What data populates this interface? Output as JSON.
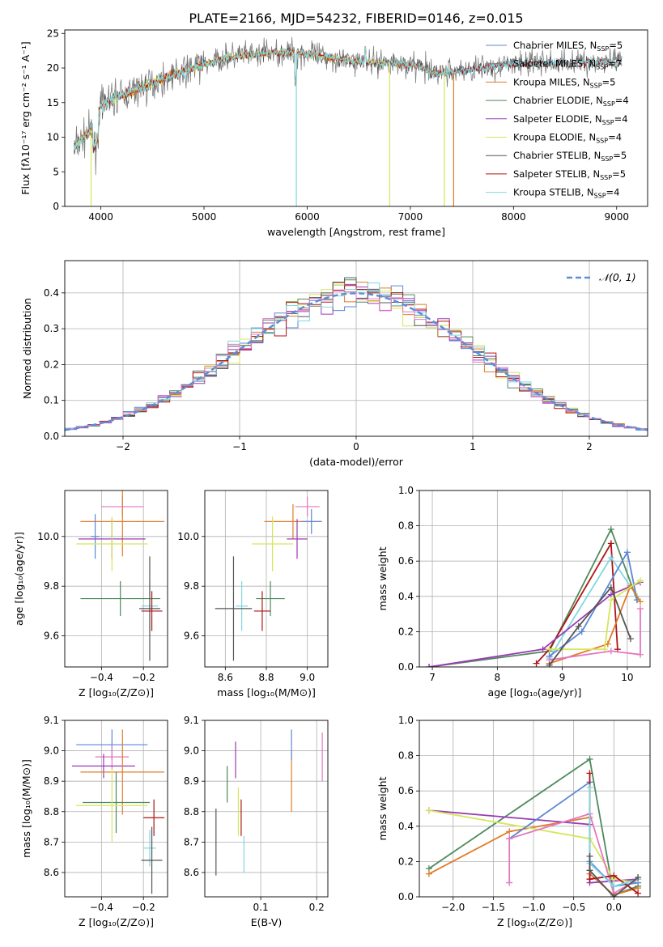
{
  "title": "PLATE=2166, MJD=54232, FIBERID=0146, z=0.015",
  "colors": {
    "Chabrier MILES": "#5b87d6",
    "Salpeter MILES": "#7f7f7f",
    "Kroupa MILES": "#e07b28",
    "Chabrier ELODIE": "#4e8a5e",
    "Salpeter ELODIE": "#9a3bb5",
    "Kroupa ELODIE": "#d6e65c",
    "Chabrier STELIB": "#555555",
    "Salpeter STELIB": "#b01515",
    "Kroupa STELIB": "#7fd8e0",
    "extra_pink": "#e377c2",
    "normal_curve": "#5b8ed6"
  },
  "chart_data": [
    {
      "id": "spectrum",
      "type": "line",
      "xlabel": "wavelength [Angstrom, rest frame]",
      "ylabel": "Flux [fλ10⁻¹⁷ erg cm⁻² s⁻¹ A⁻¹]",
      "xlim": [
        3650,
        9300
      ],
      "ylim": [
        0,
        25.5
      ],
      "xticks": [
        4000,
        5000,
        6000,
        7000,
        8000,
        9000
      ],
      "yticks": [
        0,
        5,
        10,
        15,
        20,
        25
      ],
      "legend_position": "right",
      "legend": [
        {
          "label": "Chabrier MILES, N",
          "sub": "SSP",
          "tail": "=5"
        },
        {
          "label": "Salpeter MILES, N",
          "sub": "SSP",
          "tail": "=7"
        },
        {
          "label": "Kroupa MILES, N",
          "sub": "SSP",
          "tail": "=5"
        },
        {
          "label": "Chabrier ELODIE, N",
          "sub": "SSP",
          "tail": "=4"
        },
        {
          "label": "Salpeter ELODIE, N",
          "sub": "SSP",
          "tail": "=4"
        },
        {
          "label": "Kroupa ELODIE, N",
          "sub": "SSP",
          "tail": "=4"
        },
        {
          "label": "Chabrier STELIB, N",
          "sub": "SSP",
          "tail": "=5"
        },
        {
          "label": "Salpeter STELIB, N",
          "sub": "SSP",
          "tail": "=5"
        },
        {
          "label": "Kroupa STELIB, N",
          "sub": "SSP",
          "tail": "=4"
        }
      ],
      "continuum": [
        [
          3730,
          8
        ],
        [
          3800,
          9.5
        ],
        [
          3900,
          11
        ],
        [
          3950,
          12
        ],
        [
          4000,
          14.5
        ],
        [
          4100,
          15.5
        ],
        [
          4300,
          16.5
        ],
        [
          4500,
          17.8
        ],
        [
          4700,
          19
        ],
        [
          5000,
          20.5
        ],
        [
          5200,
          21.5
        ],
        [
          5500,
          22
        ],
        [
          5800,
          22.3
        ],
        [
          6000,
          22
        ],
        [
          6200,
          21.5
        ],
        [
          6500,
          21
        ],
        [
          6700,
          20.8
        ],
        [
          6900,
          20.7
        ],
        [
          7100,
          20.2
        ],
        [
          7200,
          19.2
        ],
        [
          7500,
          19.6
        ],
        [
          8000,
          20.6
        ],
        [
          8500,
          20.8
        ],
        [
          9000,
          20.9
        ]
      ],
      "drop_lines": [
        {
          "x": 5895,
          "series": "Kroupa STELIB"
        },
        {
          "x": 6800,
          "series": "Kroupa ELODIE"
        },
        {
          "x": 7330,
          "series": "Kroupa ELODIE"
        },
        {
          "x": 7420,
          "series": "Kroupa MILES"
        },
        {
          "x": 3905,
          "series": "Kroupa ELODIE"
        }
      ]
    },
    {
      "id": "residuals",
      "type": "line",
      "xlabel": "(data-model)/error",
      "ylabel": "Normed distribution",
      "xlim": [
        -2.5,
        2.5
      ],
      "ylim": [
        0,
        0.49
      ],
      "xticks": [
        -2,
        -1,
        0,
        1,
        2
      ],
      "xtick_labels": [
        "−2",
        "−1",
        "0",
        "1",
        "2"
      ],
      "yticks": [
        0.0,
        0.1,
        0.2,
        0.3,
        0.4
      ],
      "ytick_labels": [
        "0.0",
        "0.1",
        "0.2",
        "0.3",
        "0.4"
      ],
      "grid": true,
      "legend_position": "top-right",
      "legend_label": "𝒩(0, 1)",
      "bin_width": 0.1
    },
    {
      "id": "Z_vs_age",
      "type": "scatter",
      "xlabel": "Z [log₁₀(Z/Z⊙)]",
      "ylabel": "age  [log₁₀(age/yr)]",
      "xlim": [
        -0.575,
        -0.085
      ],
      "ylim": [
        9.475,
        10.185
      ],
      "xticks": [
        -0.4,
        -0.2
      ],
      "xtick_labels": [
        "−0.4",
        "−0.2"
      ],
      "yticks": [
        9.6,
        9.8,
        10.0
      ],
      "ytick_labels": [
        "9.6",
        "9.8",
        "10.0"
      ],
      "grid": true,
      "points": [
        {
          "x": -0.3,
          "y": 10.12,
          "xerr": 0.1,
          "yerr": 0.04,
          "c": "extra_pink"
        },
        {
          "x": -0.3,
          "y": 10.06,
          "xerr": 0.2,
          "yerr": 0.14,
          "c": "Kroupa MILES"
        },
        {
          "x": -0.43,
          "y": 10.0,
          "xerr": 0.02,
          "yerr": 0.09,
          "c": "Chabrier MILES"
        },
        {
          "x": -0.35,
          "y": 9.99,
          "xerr": 0.16,
          "yerr": 0.08,
          "c": "Salpeter ELODIE"
        },
        {
          "x": -0.35,
          "y": 9.97,
          "xerr": 0.17,
          "yerr": 0.11,
          "c": "Kroupa ELODIE"
        },
        {
          "x": -0.31,
          "y": 9.75,
          "xerr": 0.19,
          "yerr": 0.07,
          "c": "Chabrier ELODIE"
        },
        {
          "x": -0.17,
          "y": 9.72,
          "xerr": 0.04,
          "yerr": 0.1,
          "c": "Kroupa STELIB"
        },
        {
          "x": -0.17,
          "y": 9.71,
          "xerr": 0.05,
          "yerr": 0.21,
          "c": "Chabrier STELIB"
        },
        {
          "x": -0.16,
          "y": 9.7,
          "xerr": 0.05,
          "yerr": 0.08,
          "c": "Salpeter STELIB"
        }
      ]
    },
    {
      "id": "mass_vs_age",
      "type": "scatter",
      "xlabel": "mass [log₁₀(M/M⊙)]",
      "ylabel": "",
      "xlim": [
        8.5,
        9.1
      ],
      "ylim": [
        9.475,
        10.185
      ],
      "xticks": [
        8.6,
        8.8,
        9.0
      ],
      "xtick_labels": [
        "8.6",
        "8.8",
        "9.0"
      ],
      "yticks": [
        9.6,
        9.8,
        10.0
      ],
      "ytick_labels": [
        "9.6",
        "9.8",
        "10.0"
      ],
      "grid": true,
      "points": [
        {
          "x": 9.0,
          "y": 10.12,
          "xerr": 0.06,
          "yerr": 0.04,
          "c": "extra_pink"
        },
        {
          "x": 8.93,
          "y": 10.06,
          "xerr": 0.14,
          "yerr": 0.07,
          "c": "Kroupa MILES"
        },
        {
          "x": 9.02,
          "y": 10.06,
          "xerr": 0.05,
          "yerr": 0.05,
          "c": "Chabrier MILES"
        },
        {
          "x": 8.95,
          "y": 9.99,
          "xerr": 0.05,
          "yerr": 0.08,
          "c": "Salpeter ELODIE"
        },
        {
          "x": 8.83,
          "y": 9.97,
          "xerr": 0.1,
          "yerr": 0.11,
          "c": "Kroupa ELODIE"
        },
        {
          "x": 8.82,
          "y": 9.75,
          "xerr": 0.07,
          "yerr": 0.07,
          "c": "Chabrier ELODIE"
        },
        {
          "x": 8.68,
          "y": 9.72,
          "xerr": 0.03,
          "yerr": 0.1,
          "c": "Kroupa STELIB"
        },
        {
          "x": 8.64,
          "y": 9.71,
          "xerr": 0.09,
          "yerr": 0.21,
          "c": "Chabrier STELIB"
        },
        {
          "x": 8.78,
          "y": 9.7,
          "xerr": 0.04,
          "yerr": 0.08,
          "c": "Salpeter STELIB"
        }
      ]
    },
    {
      "id": "age_vs_weight",
      "type": "line",
      "xlabel": "age  [log₁₀(age/yr)]",
      "ylabel": "mass weight",
      "xlim": [
        6.8,
        10.35
      ],
      "ylim": [
        0,
        1.0
      ],
      "xticks": [
        7,
        8,
        9,
        10
      ],
      "yticks": [
        0.0,
        0.2,
        0.4,
        0.6,
        0.8,
        1.0
      ],
      "ytick_labels": [
        "0.0",
        "0.2",
        "0.4",
        "0.6",
        "0.8",
        "1.0"
      ],
      "grid": true,
      "series": [
        {
          "c": "Chabrier ELODIE",
          "x": [
            6.95,
            8.8,
            9.75,
            10.15
          ],
          "y": [
            0.0,
            0.09,
            0.78,
            0.38
          ]
        },
        {
          "c": "Salpeter STELIB",
          "x": [
            8.6,
            8.8,
            9.75,
            9.85
          ],
          "y": [
            0.02,
            0.1,
            0.7,
            0.1
          ]
        },
        {
          "c": "Kroupa STELIB",
          "x": [
            8.8,
            9.75,
            10.15
          ],
          "y": [
            0.05,
            0.62,
            0.4
          ]
        },
        {
          "c": "Chabrier MILES",
          "x": [
            8.8,
            9.3,
            10.0,
            10.15
          ],
          "y": [
            0.06,
            0.2,
            0.65,
            0.38
          ]
        },
        {
          "c": "Salpeter ELODIE",
          "x": [
            6.95,
            8.7,
            9.75,
            10.2
          ],
          "y": [
            0.0,
            0.1,
            0.41,
            0.48
          ]
        },
        {
          "c": "Kroupa MILES",
          "x": [
            8.8,
            9.7,
            10.05,
            10.2
          ],
          "y": [
            0.02,
            0.13,
            0.46,
            0.37
          ]
        },
        {
          "c": "Kroupa ELODIE",
          "x": [
            8.8,
            9.65,
            9.75,
            10.2
          ],
          "y": [
            0.1,
            0.1,
            0.38,
            0.49
          ]
        },
        {
          "c": "extra_pink",
          "x": [
            8.8,
            9.75,
            10.2,
            10.2
          ],
          "y": [
            0.04,
            0.09,
            0.07,
            0.33
          ]
        },
        {
          "c": "Chabrier STELIB",
          "x": [
            8.8,
            9.25,
            9.75,
            10.05
          ],
          "y": [
            0.01,
            0.23,
            0.45,
            0.16
          ]
        }
      ]
    },
    {
      "id": "Z_vs_mass",
      "type": "scatter",
      "xlabel": "Z [log₁₀(Z/Z⊙)]",
      "ylabel": "mass [log₁₀(M/M⊙)]",
      "xlim": [
        -0.575,
        -0.085
      ],
      "ylim": [
        8.52,
        9.1
      ],
      "xticks": [
        -0.4,
        -0.2
      ],
      "xtick_labels": [
        "−0.4",
        "−0.2"
      ],
      "yticks": [
        8.6,
        8.7,
        8.8,
        8.9,
        9.0,
        9.1
      ],
      "ytick_labels": [
        "8.6",
        "8.7",
        "8.8",
        "8.9",
        "9.0",
        "9.1"
      ],
      "grid": true,
      "points": [
        {
          "x": -0.35,
          "y": 9.02,
          "xerr": 0.17,
          "yerr": 0.05,
          "c": "Chabrier MILES"
        },
        {
          "x": -0.35,
          "y": 8.98,
          "xerr": 0.08,
          "yerr": 0.04,
          "c": "extra_pink"
        },
        {
          "x": -0.39,
          "y": 8.95,
          "xerr": 0.15,
          "yerr": 0.04,
          "c": "Salpeter ELODIE"
        },
        {
          "x": -0.3,
          "y": 8.93,
          "xerr": 0.2,
          "yerr": 0.14,
          "c": "Kroupa MILES"
        },
        {
          "x": -0.33,
          "y": 8.83,
          "xerr": 0.16,
          "yerr": 0.1,
          "c": "Chabrier ELODIE"
        },
        {
          "x": -0.35,
          "y": 8.82,
          "xerr": 0.17,
          "yerr": 0.12,
          "c": "Kroupa ELODIE"
        },
        {
          "x": -0.15,
          "y": 8.78,
          "xerr": 0.05,
          "yerr": 0.06,
          "c": "Salpeter STELIB"
        },
        {
          "x": -0.17,
          "y": 8.68,
          "xerr": 0.03,
          "yerr": 0.06,
          "c": "Kroupa STELIB"
        },
        {
          "x": -0.16,
          "y": 8.64,
          "xerr": 0.05,
          "yerr": 0.11,
          "c": "Chabrier STELIB"
        }
      ]
    },
    {
      "id": "ebv_vs_mass",
      "type": "scatter",
      "xlabel": "E(B-V)",
      "ylabel": "",
      "xlim": [
        0.0,
        0.22
      ],
      "ylim": [
        8.52,
        9.1
      ],
      "xticks": [
        0.1,
        0.2
      ],
      "xtick_labels": [
        "0.1",
        "0.2"
      ],
      "yticks": [
        8.6,
        8.7,
        8.8,
        8.9,
        9.0,
        9.1
      ],
      "ytick_labels": [
        "8.6",
        "8.7",
        "8.8",
        "8.9",
        "9.0",
        "9.1"
      ],
      "grid": true,
      "points": [
        {
          "x": 0.02,
          "y": 8.7,
          "xerr": 0,
          "yerr": 0.11,
          "c": "Chabrier STELIB"
        },
        {
          "x": 0.04,
          "y": 8.89,
          "xerr": 0,
          "yerr": 0.06,
          "c": "Chabrier ELODIE"
        },
        {
          "x": 0.055,
          "y": 8.97,
          "xerr": 0,
          "yerr": 0.06,
          "c": "Salpeter ELODIE"
        },
        {
          "x": 0.06,
          "y": 8.8,
          "xerr": 0,
          "yerr": 0.08,
          "c": "Kroupa ELODIE"
        },
        {
          "x": 0.065,
          "y": 8.78,
          "xerr": 0,
          "yerr": 0.06,
          "c": "Salpeter STELIB"
        },
        {
          "x": 0.07,
          "y": 8.66,
          "xerr": 0,
          "yerr": 0.06,
          "c": "Kroupa STELIB"
        },
        {
          "x": 0.155,
          "y": 8.9,
          "xerr": 0,
          "yerr": 0.1,
          "c": "Kroupa MILES"
        },
        {
          "x": 0.155,
          "y": 9.02,
          "xerr": 0,
          "yerr": 0.05,
          "c": "Chabrier MILES"
        },
        {
          "x": 0.21,
          "y": 8.98,
          "xerr": 0,
          "yerr": 0.08,
          "c": "extra_pink"
        }
      ]
    },
    {
      "id": "Z_vs_weight",
      "type": "line",
      "xlabel": "Z [log₁₀(Z/Z⊙)]",
      "ylabel": "mass weight",
      "xlim": [
        -2.42,
        0.45
      ],
      "ylim": [
        0,
        1.0
      ],
      "xticks": [
        -2.0,
        -1.5,
        -1.0,
        -0.5,
        0.0
      ],
      "xtick_labels": [
        "−2.0",
        "−1.5",
        "−1.0",
        "−0.5",
        "0.0"
      ],
      "yticks": [
        0.0,
        0.2,
        0.4,
        0.6,
        0.8,
        1.0
      ],
      "ytick_labels": [
        "0.0",
        "0.2",
        "0.4",
        "0.6",
        "0.8",
        "1.0"
      ],
      "grid": true,
      "series": [
        {
          "c": "Chabrier ELODIE",
          "x": [
            -2.3,
            -0.3,
            0.0,
            0.3
          ],
          "y": [
            0.16,
            0.78,
            0.01,
            0.06
          ]
        },
        {
          "c": "Kroupa MILES",
          "x": [
            -2.3,
            -1.3,
            -0.3,
            -0.3,
            0.0,
            0.3
          ],
          "y": [
            0.13,
            0.37,
            0.45,
            0.13,
            0.01,
            0.05
          ]
        },
        {
          "c": "Salpeter ELODIE",
          "x": [
            -2.3,
            -0.3,
            -0.3,
            0.3
          ],
          "y": [
            0.49,
            0.41,
            0.08,
            0.1
          ]
        },
        {
          "c": "Kroupa ELODIE",
          "x": [
            -2.3,
            -0.3,
            0.0,
            0.3
          ],
          "y": [
            0.49,
            0.33,
            0.1,
            0.08
          ]
        },
        {
          "c": "Chabrier MILES",
          "x": [
            -1.3,
            -0.3,
            -0.3,
            0.0,
            0.3
          ],
          "y": [
            0.33,
            0.65,
            0.2,
            0.06,
            0.08
          ]
        },
        {
          "c": "extra_pink",
          "x": [
            -1.3,
            -1.3,
            -0.3,
            0.0,
            0.3
          ],
          "y": [
            0.08,
            0.33,
            0.47,
            0.02,
            0.1
          ]
        },
        {
          "c": "Salpeter STELIB",
          "x": [
            -0.3,
            -0.3,
            0.0,
            0.3
          ],
          "y": [
            0.7,
            0.1,
            0.12,
            0.02
          ]
        },
        {
          "c": "Kroupa STELIB",
          "x": [
            -0.3,
            -0.3,
            0.0,
            0.3
          ],
          "y": [
            0.62,
            0.19,
            0.06,
            0.1
          ]
        },
        {
          "c": "Chabrier STELIB",
          "x": [
            -0.3,
            -0.3,
            0.0,
            0.3
          ],
          "y": [
            0.23,
            0.15,
            0.0,
            0.11
          ]
        }
      ]
    }
  ]
}
